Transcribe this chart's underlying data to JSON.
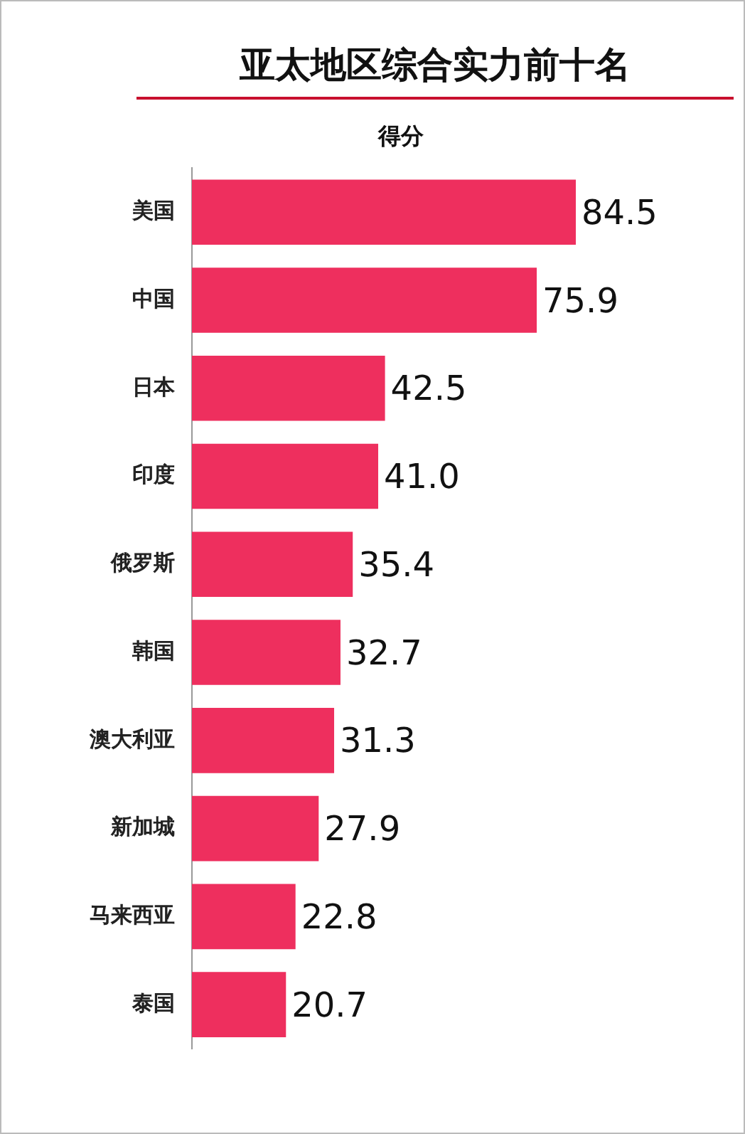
{
  "chart_data": {
    "type": "bar",
    "orientation": "horizontal",
    "title": "亚太地区综合实力前十名",
    "subtitle": "得分",
    "categories": [
      "美国",
      "中国",
      "日本",
      "印度",
      "俄罗斯",
      "韩国",
      "澳大利亚",
      "新加城",
      "马来西亚",
      "泰国"
    ],
    "values": [
      84.5,
      75.9,
      42.5,
      41.0,
      35.4,
      32.7,
      31.3,
      27.9,
      22.8,
      20.7
    ],
    "value_labels": [
      "84.5",
      "75.9",
      "42.5",
      "41.0",
      "35.4",
      "32.7",
      "31.3",
      "27.9",
      "22.8",
      "20.7"
    ],
    "color": "#ee2f5e",
    "tick_labels": "y"
  }
}
